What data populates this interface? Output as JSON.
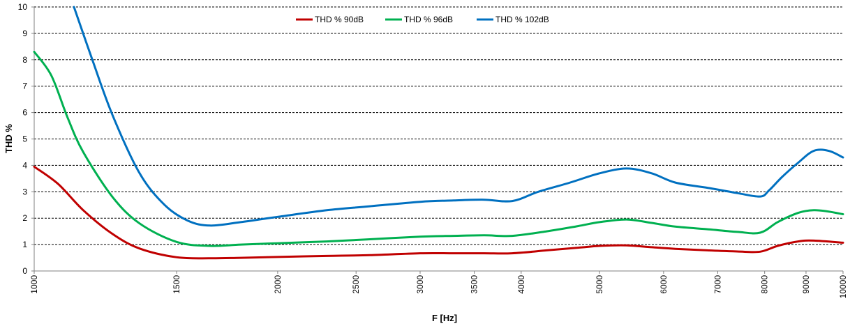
{
  "chart_data": {
    "type": "line",
    "xlabel": "F [Hz]",
    "ylabel": "THD %",
    "x_scale": "log",
    "xlim": [
      1000,
      10000
    ],
    "ylim": [
      0,
      10
    ],
    "x_ticks": [
      "1000",
      "1500",
      "2000",
      "2500",
      "3000",
      "3500",
      "4000",
      "5000",
      "6000",
      "7000",
      "8000",
      "9000",
      "10000"
    ],
    "y_ticks": [
      "0",
      "1",
      "2",
      "3",
      "4",
      "5",
      "6",
      "7",
      "8",
      "9",
      "10"
    ],
    "grid": "horizontal dashed",
    "legend_position": "top-center",
    "series": [
      {
        "name": "THD % 90dB",
        "color": "#c00000",
        "x": [
          1000,
          1070,
          1150,
          1250,
          1350,
          1500,
          1650,
          1800,
          2000,
          2300,
          2600,
          3000,
          3300,
          3600,
          3900,
          4300,
          4700,
          5000,
          5400,
          5800,
          6200,
          6800,
          7400,
          7900,
          8300,
          8800,
          9200,
          10000
        ],
        "y": [
          3.95,
          3.3,
          2.3,
          1.4,
          0.85,
          0.52,
          0.48,
          0.5,
          0.53,
          0.57,
          0.6,
          0.67,
          0.67,
          0.67,
          0.67,
          0.78,
          0.88,
          0.95,
          0.97,
          0.9,
          0.84,
          0.78,
          0.74,
          0.73,
          0.95,
          1.12,
          1.15,
          1.07
        ]
      },
      {
        "name": "THD % 96dB",
        "color": "#00b050",
        "x": [
          1000,
          1050,
          1100,
          1150,
          1250,
          1350,
          1500,
          1650,
          1800,
          2000,
          2300,
          2600,
          3000,
          3300,
          3600,
          3900,
          4300,
          4700,
          5000,
          5400,
          5800,
          6200,
          6800,
          7400,
          7900,
          8300,
          8800,
          9200,
          9600,
          10000
        ],
        "y": [
          8.3,
          7.4,
          5.8,
          4.5,
          2.8,
          1.8,
          1.1,
          0.95,
          1.0,
          1.05,
          1.12,
          1.2,
          1.3,
          1.33,
          1.35,
          1.33,
          1.5,
          1.7,
          1.85,
          1.95,
          1.82,
          1.68,
          1.58,
          1.48,
          1.45,
          1.85,
          2.2,
          2.3,
          2.25,
          2.15
        ]
      },
      {
        "name": "THD % 102dB",
        "color": "#0070c0",
        "x": [
          1120,
          1180,
          1250,
          1350,
          1450,
          1550,
          1650,
          1800,
          2000,
          2300,
          2600,
          3000,
          3300,
          3600,
          3900,
          4200,
          4600,
          5000,
          5400,
          5800,
          6200,
          6800,
          7400,
          7900,
          8100,
          8400,
          8800,
          9200,
          9600,
          10000
        ],
        "y": [
          10.0,
          8.0,
          5.9,
          3.7,
          2.5,
          1.9,
          1.72,
          1.85,
          2.05,
          2.3,
          2.45,
          2.62,
          2.67,
          2.7,
          2.65,
          3.0,
          3.35,
          3.7,
          3.88,
          3.7,
          3.35,
          3.15,
          2.95,
          2.82,
          3.05,
          3.55,
          4.1,
          4.55,
          4.55,
          4.3
        ]
      }
    ]
  }
}
